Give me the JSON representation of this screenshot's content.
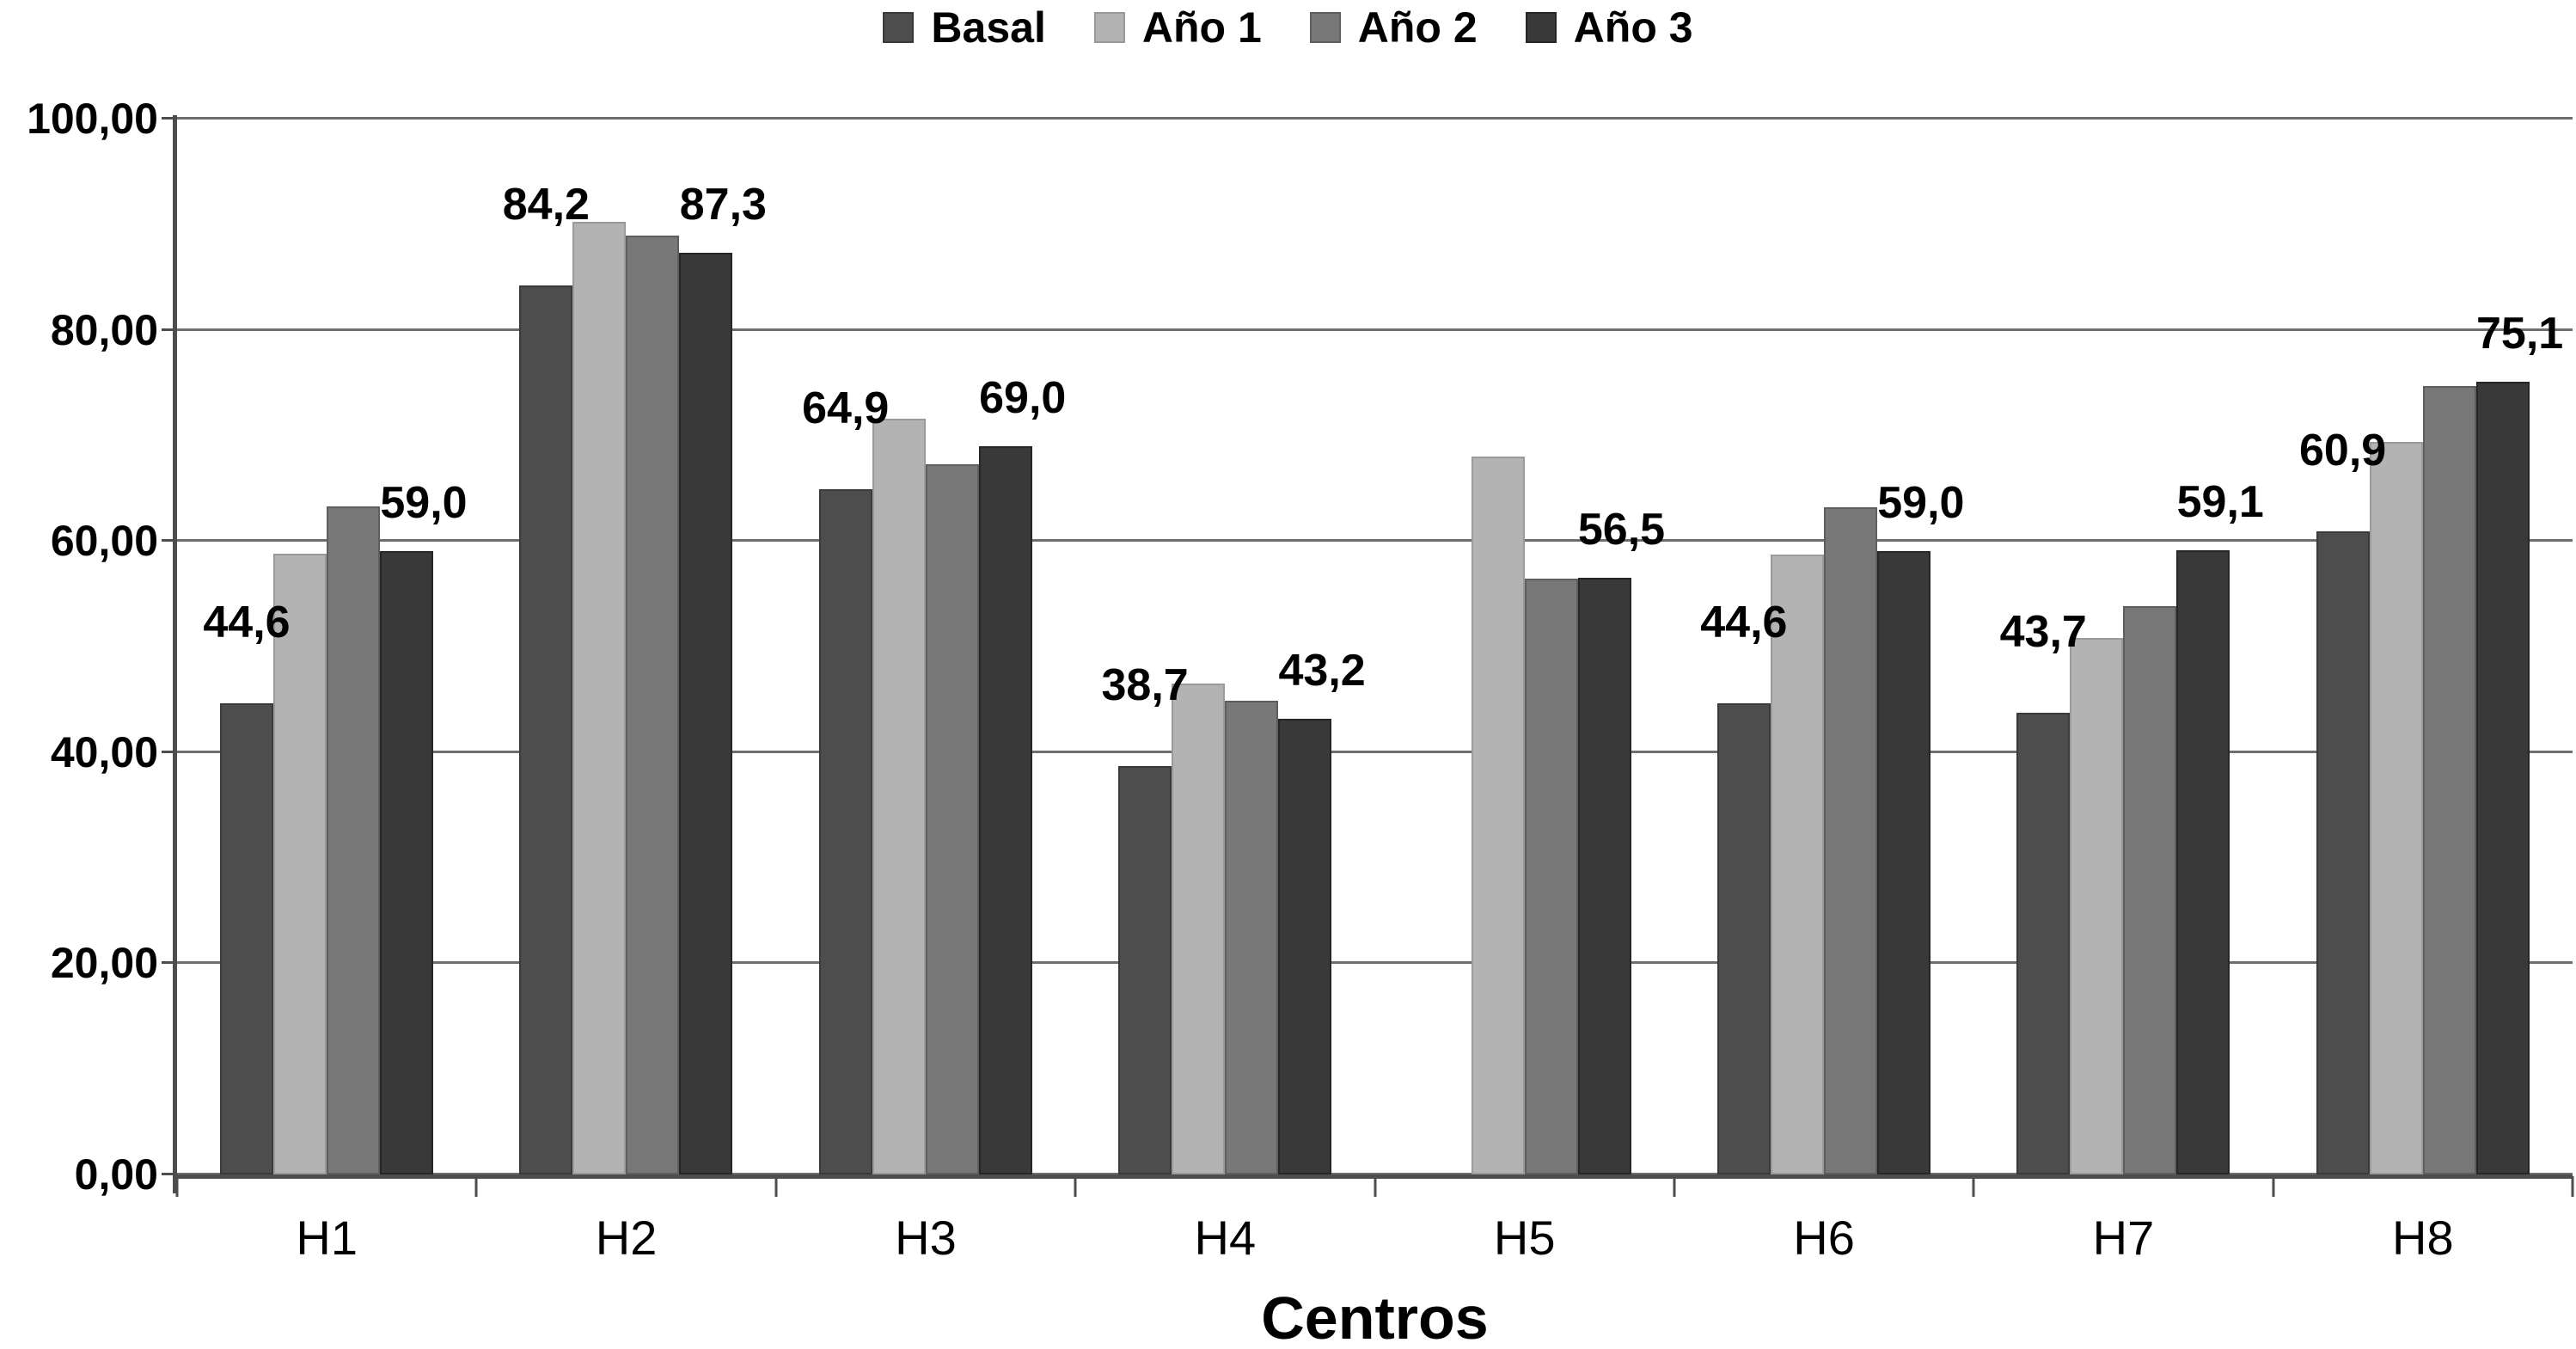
{
  "chart_data": {
    "type": "bar",
    "title": "",
    "xlabel": "Centros",
    "ylabel": "",
    "ylim": [
      0,
      100
    ],
    "grid": true,
    "legend_position": "top",
    "categories": [
      "H1",
      "H2",
      "H3",
      "H4",
      "H5",
      "H6",
      "H7",
      "H8"
    ],
    "ytick_labels": [
      "0,00",
      "20,00",
      "40,00",
      "60,00",
      "80,00",
      "100,00"
    ],
    "series": [
      {
        "name": "Basal",
        "color": "#4d4d4d",
        "values": [
          44.6,
          84.2,
          64.9,
          38.7,
          null,
          44.6,
          43.7,
          60.9
        ]
      },
      {
        "name": "Año 1",
        "color": "#b3b3b3",
        "values": [
          58.8,
          90.2,
          71.6,
          46.5,
          68.0,
          58.7,
          50.8,
          69.4
        ]
      },
      {
        "name": "Año 2",
        "color": "#787878",
        "values": [
          63.3,
          88.9,
          67.3,
          44.9,
          56.4,
          63.2,
          53.8,
          74.7
        ]
      },
      {
        "name": "Año 3",
        "color": "#393939",
        "values": [
          59.0,
          87.3,
          69.0,
          43.2,
          56.5,
          59.0,
          59.1,
          75.1
        ]
      }
    ],
    "data_labels": {
      "basal": [
        "44,6",
        "84,2",
        "64,9",
        "38,7",
        null,
        "44,6",
        "43,7",
        "60,9"
      ],
      "ano3": [
        "59,0",
        "87,3",
        "69,0",
        "43,2",
        "56,5",
        "59,0",
        "59,1",
        "75,1"
      ]
    }
  }
}
